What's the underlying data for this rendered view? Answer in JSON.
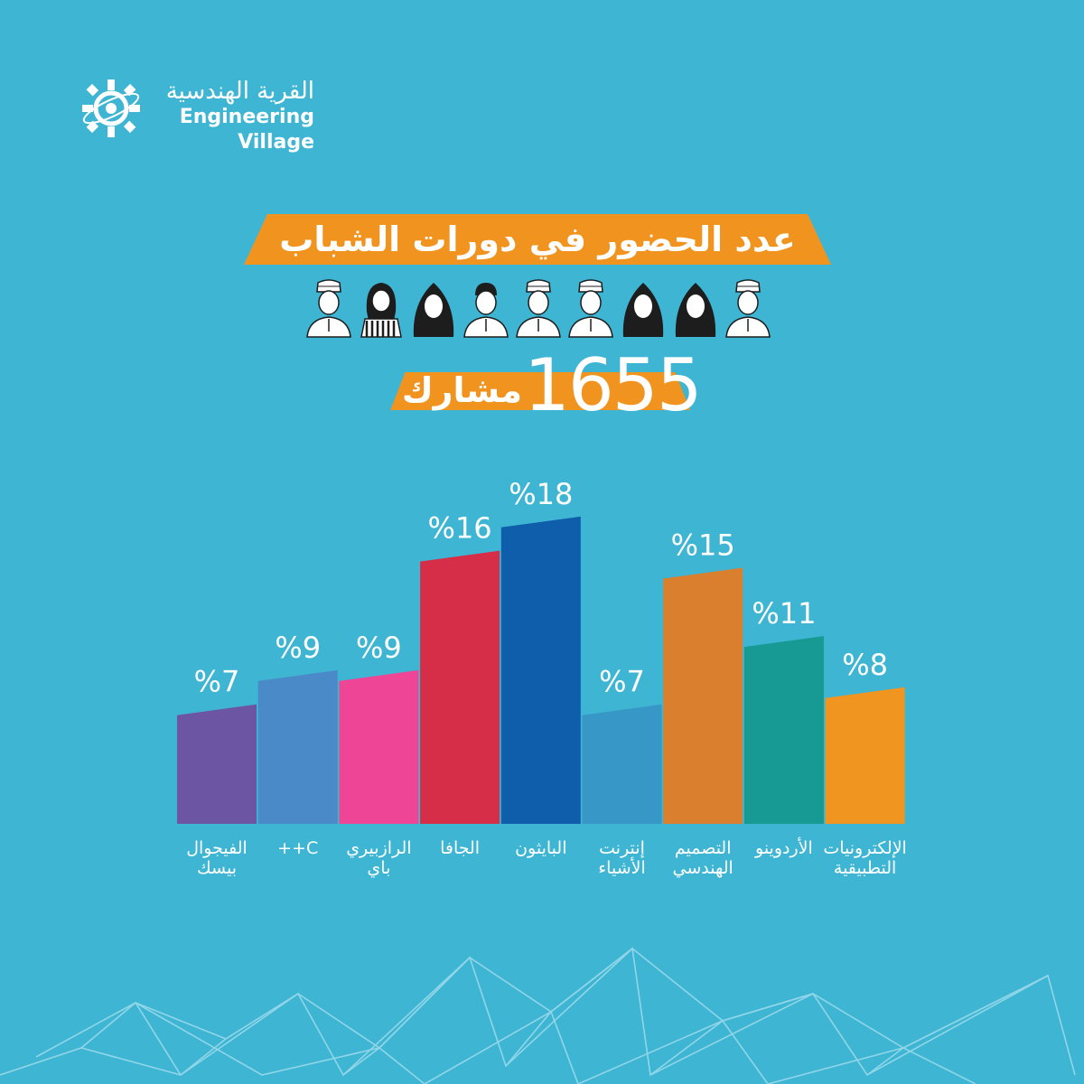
{
  "brand": {
    "name_ar": "القرية الهندسية",
    "name_en": "Engineering Village"
  },
  "title": "عدد الحضور في دورات الشباب",
  "total": {
    "number": "1655",
    "label": "مشارك"
  },
  "colors": {
    "background": "#3eb5d3",
    "ribbon": "#f1941f",
    "text": "#ffffff"
  },
  "people_icons": [
    "man-icon",
    "girl-icon",
    "woman-icon",
    "boy-icon",
    "man-icon",
    "man-icon",
    "woman-icon",
    "woman-icon",
    "man-icon"
  ],
  "chart_data": {
    "type": "bar",
    "categories": [
      "الفيجوال\nبيسك",
      "C++",
      "الرازبيري\nباي",
      "الجافا",
      "البايثون",
      "إنترنت\nالأشياء",
      "التصميم\nالهندسي",
      "الأردوينو",
      "الإلكترونيات\nالتطبيقية"
    ],
    "values": [
      7,
      9,
      9,
      16,
      18,
      7,
      15,
      11,
      8
    ],
    "value_labels": [
      "%7",
      "%9",
      "%9",
      "%16",
      "%18",
      "%7",
      "%15",
      "%11",
      "%8"
    ],
    "colors": [
      "#6c55a3",
      "#4a8ac8",
      "#ee4596",
      "#d62d48",
      "#0f5eab",
      "#3797c6",
      "#d97f2d",
      "#179a93",
      "#f0951f"
    ],
    "ylim": [
      0,
      18
    ],
    "grid": false,
    "legend": "none"
  }
}
